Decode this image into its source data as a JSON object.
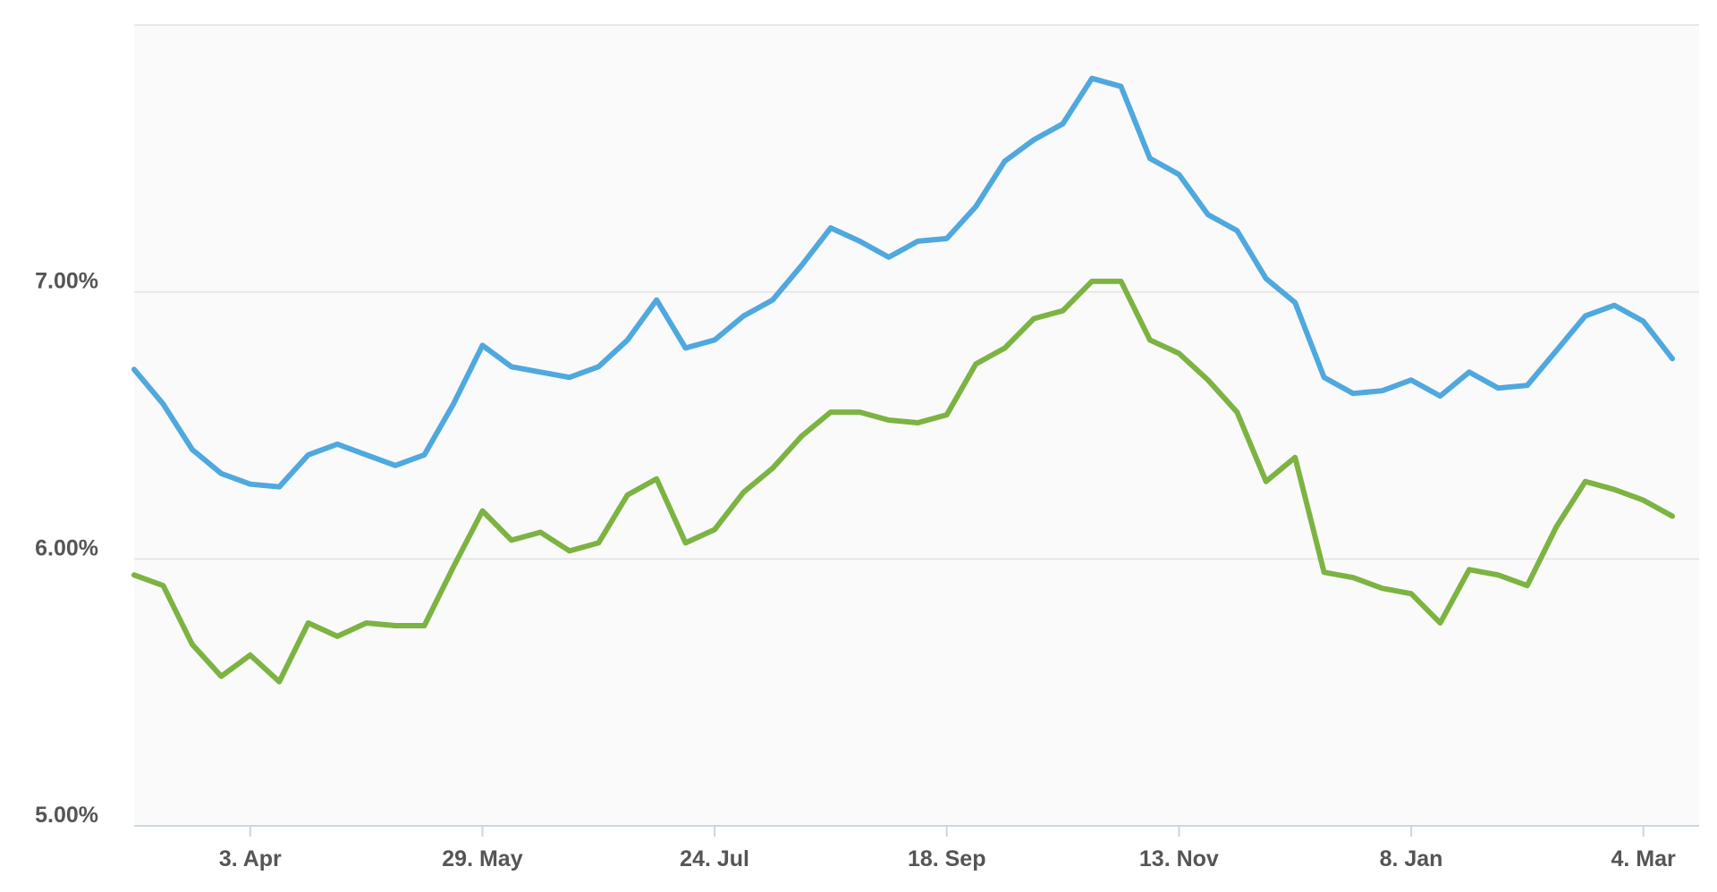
{
  "chart_data": {
    "type": "line",
    "title": "",
    "xlabel": "",
    "ylabel": "",
    "x_ticks": [
      "3. Apr",
      "29. May",
      "24. Jul",
      "18. Sep",
      "13. Nov",
      "8. Jan",
      "4. Mar"
    ],
    "y_ticks": [
      "5.00%",
      "6.00%",
      "7.00%"
    ],
    "ylim": [
      5.0,
      8.0
    ],
    "grid": "horizontal",
    "legend": "none",
    "background": "#fafafa",
    "x": [
      "2017-03-06",
      "2017-03-13",
      "2017-03-20",
      "2017-03-27",
      "2017-04-03",
      "2017-04-10",
      "2017-04-17",
      "2017-04-24",
      "2017-05-01",
      "2017-05-08",
      "2017-05-15",
      "2017-05-22",
      "2017-05-29",
      "2017-06-05",
      "2017-06-12",
      "2017-06-19",
      "2017-06-26",
      "2017-07-03",
      "2017-07-10",
      "2017-07-17",
      "2017-07-24",
      "2017-07-31",
      "2017-08-07",
      "2017-08-14",
      "2017-08-21",
      "2017-08-28",
      "2017-09-04",
      "2017-09-11",
      "2017-09-18",
      "2017-09-25",
      "2017-10-02",
      "2017-10-09",
      "2017-10-16",
      "2017-10-23",
      "2017-10-30",
      "2017-11-06",
      "2017-11-13",
      "2017-11-20",
      "2017-11-27",
      "2017-12-04",
      "2017-12-11",
      "2017-12-18",
      "2017-12-25",
      "2018-01-01",
      "2018-01-08",
      "2018-01-15",
      "2018-01-22",
      "2018-01-29",
      "2018-02-05",
      "2018-02-12",
      "2018-02-19",
      "2018-02-26",
      "2018-03-05",
      "2018-03-12"
    ],
    "series": [
      {
        "color": "#4fa8de",
        "values": [
          6.71,
          6.58,
          6.41,
          6.32,
          6.28,
          6.27,
          6.39,
          6.43,
          6.39,
          6.35,
          6.39,
          6.58,
          6.8,
          6.72,
          6.7,
          6.68,
          6.72,
          6.82,
          6.97,
          6.79,
          6.82,
          6.91,
          6.97,
          7.1,
          7.24,
          7.19,
          7.13,
          7.19,
          7.2,
          7.32,
          7.49,
          7.57,
          7.63,
          7.8,
          7.77,
          7.5,
          7.44,
          7.29,
          7.23,
          7.05,
          6.96,
          6.68,
          6.62,
          6.63,
          6.67,
          6.61,
          6.7,
          6.64,
          6.65,
          6.78,
          6.91,
          6.95,
          6.89,
          6.75
        ]
      },
      {
        "color": "#7cb342",
        "values": [
          5.94,
          5.9,
          5.68,
          5.56,
          5.64,
          5.54,
          5.76,
          5.71,
          5.76,
          5.75,
          5.75,
          5.97,
          6.18,
          6.07,
          6.1,
          6.03,
          6.06,
          6.24,
          6.3,
          6.06,
          6.11,
          6.25,
          6.34,
          6.46,
          6.55,
          6.55,
          6.52,
          6.51,
          6.54,
          6.73,
          6.79,
          6.9,
          6.93,
          7.04,
          7.04,
          6.82,
          6.77,
          6.67,
          6.55,
          6.29,
          6.38,
          5.95,
          5.93,
          5.89,
          5.87,
          5.76,
          5.96,
          5.94,
          5.9,
          6.12,
          6.29,
          6.26,
          6.22,
          6.16
        ]
      }
    ]
  }
}
